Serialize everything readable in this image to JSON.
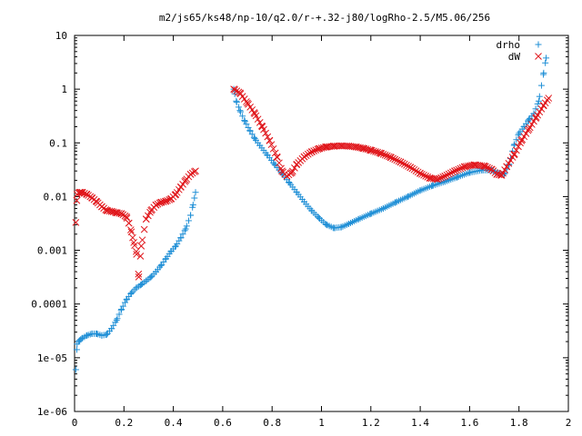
{
  "chart_data": {
    "type": "scatter",
    "title": "m2/js65/ks48/np-10/q2.0/r-+.32-j80/logRho-2.5/M5.06/256",
    "xlabel": "",
    "ylabel": "",
    "xlim": [
      0,
      2
    ],
    "ylim": [
      1e-06,
      10
    ],
    "y_scale": "log",
    "x_ticks": [
      "0",
      "0.2",
      "0.4",
      "0.6",
      "0.8",
      "1",
      "1.2",
      "1.4",
      "1.6",
      "1.8",
      "2"
    ],
    "y_ticks": [
      "1e-06",
      "1e-05",
      "0.0001",
      "0.001",
      "0.01",
      "0.1",
      "1",
      "10"
    ],
    "grid": false,
    "legend_placement": "top-right",
    "series": [
      {
        "name": "drho",
        "marker": "+",
        "color": "#1f8fd6",
        "segments": [
          [
            [
              0.005,
              6e-06
            ],
            [
              0.01,
              1.8e-05
            ],
            [
              0.02,
              2.1e-05
            ],
            [
              0.03,
              2.3e-05
            ],
            [
              0.05,
              2.6e-05
            ],
            [
              0.07,
              2.8e-05
            ],
            [
              0.09,
              2.8e-05
            ],
            [
              0.11,
              2.6e-05
            ],
            [
              0.13,
              2.7e-05
            ],
            [
              0.15,
              3.5e-05
            ],
            [
              0.17,
              5e-05
            ],
            [
              0.19,
              8e-05
            ],
            [
              0.21,
              0.00012
            ],
            [
              0.23,
              0.00016
            ],
            [
              0.25,
              0.0002
            ],
            [
              0.27,
              0.00023
            ],
            [
              0.29,
              0.00027
            ],
            [
              0.31,
              0.00032
            ],
            [
              0.33,
              0.0004
            ],
            [
              0.35,
              0.00052
            ],
            [
              0.37,
              0.0007
            ],
            [
              0.39,
              0.00095
            ],
            [
              0.41,
              0.0012
            ],
            [
              0.43,
              0.0017
            ],
            [
              0.45,
              0.0025
            ],
            [
              0.47,
              0.0045
            ],
            [
              0.48,
              0.007
            ],
            [
              0.49,
              0.012
            ]
          ],
          [
            [
              0.645,
              1.0
            ],
            [
              0.655,
              0.6
            ],
            [
              0.67,
              0.4
            ],
            [
              0.69,
              0.25
            ],
            [
              0.71,
              0.17
            ],
            [
              0.73,
              0.12
            ],
            [
              0.75,
              0.09
            ],
            [
              0.78,
              0.06
            ],
            [
              0.81,
              0.04
            ],
            [
              0.84,
              0.027
            ],
            [
              0.87,
              0.018
            ],
            [
              0.9,
              0.012
            ],
            [
              0.93,
              0.008
            ],
            [
              0.96,
              0.0055
            ],
            [
              0.99,
              0.004
            ],
            [
              1.02,
              0.003
            ],
            [
              1.05,
              0.0026
            ],
            [
              1.08,
              0.0027
            ],
            [
              1.11,
              0.0031
            ],
            [
              1.15,
              0.0038
            ],
            [
              1.2,
              0.0048
            ],
            [
              1.25,
              0.006
            ],
            [
              1.3,
              0.0078
            ],
            [
              1.35,
              0.01
            ],
            [
              1.4,
              0.013
            ],
            [
              1.45,
              0.016
            ],
            [
              1.5,
              0.019
            ],
            [
              1.55,
              0.023
            ],
            [
              1.6,
              0.028
            ],
            [
              1.65,
              0.031
            ],
            [
              1.69,
              0.031
            ],
            [
              1.72,
              0.027
            ],
            [
              1.74,
              0.026
            ],
            [
              1.76,
              0.04
            ],
            [
              1.78,
              0.09
            ],
            [
              1.8,
              0.15
            ],
            [
              1.82,
              0.2
            ],
            [
              1.84,
              0.27
            ],
            [
              1.86,
              0.35
            ],
            [
              1.88,
              0.6
            ],
            [
              1.9,
              2.0
            ],
            [
              1.91,
              3.8
            ]
          ]
        ]
      },
      {
        "name": "dW",
        "marker": "x",
        "color": "#e0151a",
        "segments": [
          [
            [
              0.005,
              0.0033
            ],
            [
              0.01,
              0.011
            ],
            [
              0.02,
              0.012
            ],
            [
              0.03,
              0.012
            ],
            [
              0.05,
              0.011
            ],
            [
              0.07,
              0.0095
            ],
            [
              0.09,
              0.008
            ],
            [
              0.11,
              0.0065
            ],
            [
              0.13,
              0.0055
            ],
            [
              0.15,
              0.0053
            ],
            [
              0.17,
              0.005
            ],
            [
              0.19,
              0.0048
            ],
            [
              0.21,
              0.0042
            ],
            [
              0.22,
              0.0032
            ],
            [
              0.23,
              0.0022
            ],
            [
              0.24,
              0.0014
            ],
            [
              0.25,
              0.00095
            ],
            [
              0.26,
              0.00032
            ],
            [
              0.27,
              0.0012
            ],
            [
              0.29,
              0.0038
            ],
            [
              0.31,
              0.0055
            ],
            [
              0.33,
              0.007
            ],
            [
              0.35,
              0.0078
            ],
            [
              0.37,
              0.0082
            ],
            [
              0.39,
              0.009
            ],
            [
              0.41,
              0.011
            ],
            [
              0.43,
              0.015
            ],
            [
              0.45,
              0.02
            ],
            [
              0.47,
              0.026
            ],
            [
              0.49,
              0.03
            ]
          ],
          [
            [
              0.645,
              1.0
            ],
            [
              0.67,
              0.85
            ],
            [
              0.7,
              0.55
            ],
            [
              0.73,
              0.35
            ],
            [
              0.76,
              0.2
            ],
            [
              0.79,
              0.11
            ],
            [
              0.82,
              0.055
            ],
            [
              0.84,
              0.03
            ],
            [
              0.86,
              0.024
            ],
            [
              0.88,
              0.028
            ],
            [
              0.9,
              0.04
            ],
            [
              0.93,
              0.055
            ],
            [
              0.96,
              0.068
            ],
            [
              0.99,
              0.078
            ],
            [
              1.02,
              0.084
            ],
            [
              1.05,
              0.087
            ],
            [
              1.08,
              0.088
            ],
            [
              1.11,
              0.087
            ],
            [
              1.14,
              0.084
            ],
            [
              1.17,
              0.079
            ],
            [
              1.2,
              0.073
            ],
            [
              1.24,
              0.064
            ],
            [
              1.28,
              0.054
            ],
            [
              1.32,
              0.044
            ],
            [
              1.36,
              0.035
            ],
            [
              1.4,
              0.027
            ],
            [
              1.44,
              0.022
            ],
            [
              1.47,
              0.021
            ],
            [
              1.5,
              0.024
            ],
            [
              1.54,
              0.03
            ],
            [
              1.58,
              0.036
            ],
            [
              1.62,
              0.039
            ],
            [
              1.66,
              0.037
            ],
            [
              1.69,
              0.032
            ],
            [
              1.71,
              0.026
            ],
            [
              1.73,
              0.025
            ],
            [
              1.75,
              0.036
            ],
            [
              1.78,
              0.06
            ],
            [
              1.81,
              0.11
            ],
            [
              1.84,
              0.18
            ],
            [
              1.87,
              0.3
            ],
            [
              1.9,
              0.5
            ],
            [
              1.92,
              0.68
            ]
          ]
        ]
      }
    ]
  }
}
